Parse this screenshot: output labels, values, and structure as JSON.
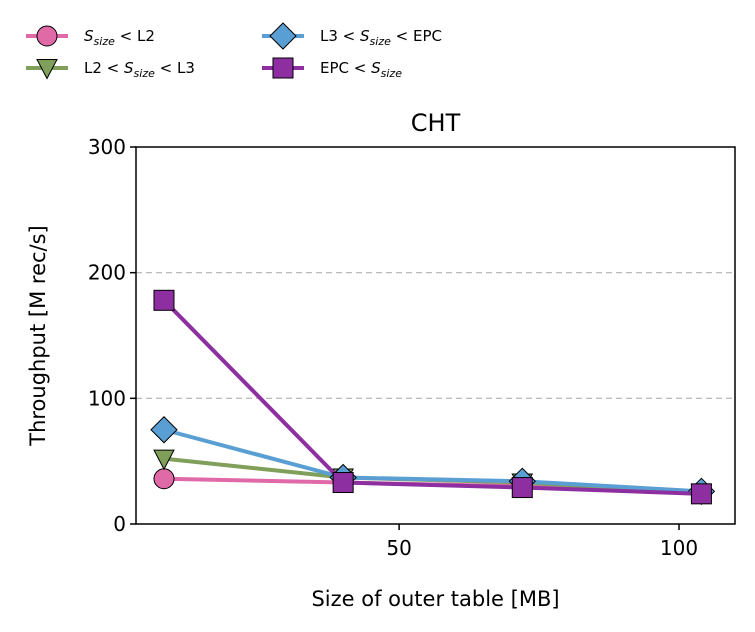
{
  "chart_data": {
    "type": "line",
    "title": "CHT",
    "xlabel": "Size of outer table [MB]",
    "ylabel": "Throughput [M rec/s]",
    "xlim": [
      3,
      110
    ],
    "ylim": [
      0,
      300
    ],
    "xticks": [
      50,
      100
    ],
    "yticks": [
      0,
      100,
      200,
      300
    ],
    "grid": "horizontal dashed at y ticks",
    "legend_placement": "top, above plot, 2 columns",
    "x": [
      8,
      40,
      72,
      104
    ],
    "series": [
      {
        "name": "S_size < L2",
        "legend_main": "S",
        "legend_sub": "size",
        "legend_rest": " < L2",
        "color": "#e06aa8",
        "marker": "circle",
        "values": [
          36,
          33,
          30,
          25
        ]
      },
      {
        "name": "L2 < S_size < L3",
        "legend_pre": "L2 < ",
        "legend_main": "S",
        "legend_sub": "size",
        "legend_rest": " < L3",
        "color": "#7f9f5a",
        "marker": "triangle-down",
        "values": [
          52,
          37,
          33,
          25
        ]
      },
      {
        "name": "L3 < S_size < EPC",
        "legend_pre": "L3 < ",
        "legend_main": "S",
        "legend_sub": "size",
        "legend_rest": " < EPC",
        "color": "#5a9fd4",
        "marker": "diamond",
        "values": [
          75,
          37,
          34,
          26
        ]
      },
      {
        "name": "EPC < S_size",
        "legend_pre": "EPC < ",
        "legend_main": "S",
        "legend_sub": "size",
        "legend_rest": "",
        "color": "#8d2fa0",
        "marker": "square",
        "values": [
          178,
          33,
          29,
          24
        ]
      }
    ]
  }
}
